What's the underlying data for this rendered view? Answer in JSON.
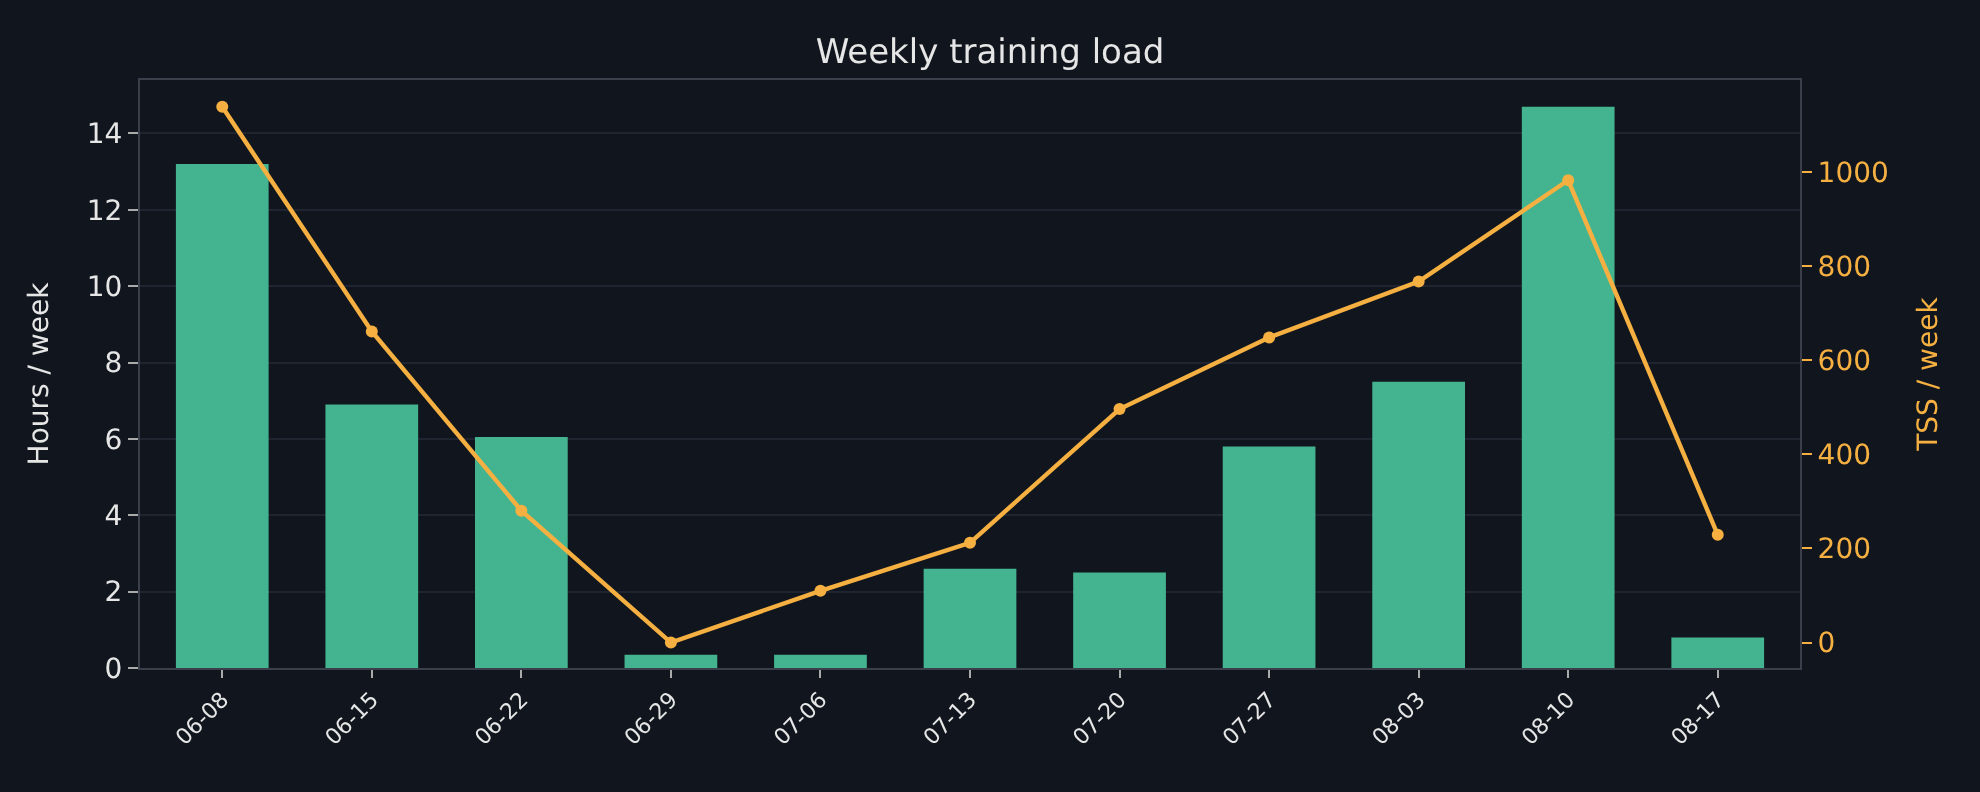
{
  "chart_data": {
    "type": "bar",
    "title": "Weekly training load",
    "ylabel": "Hours / week",
    "y2label": "TSS / week",
    "categories": [
      "06-08",
      "06-15",
      "06-22",
      "06-29",
      "07-06",
      "07-13",
      "07-20",
      "07-27",
      "08-03",
      "08-10",
      "08-17"
    ],
    "series": [
      {
        "color": "#43b48f",
        "values": [
          13.2,
          6.9,
          6.05,
          0.35,
          0.35,
          2.6,
          2.5,
          5.8,
          7.5,
          14.7,
          0.8
        ]
      },
      {
        "type": "line",
        "axis": "y2",
        "color": "#f5b041",
        "values": [
          1138,
          661,
          280,
          0,
          110,
          212,
          496,
          648,
          767,
          982,
          229
        ]
      }
    ],
    "ylim": [
      0,
      15.4
    ],
    "yticks": [
      0,
      2,
      4,
      6,
      8,
      10,
      12,
      14
    ],
    "y2lim": [
      -54,
      1195
    ],
    "y2ticks": [
      0,
      200,
      400,
      600,
      800,
      1000
    ],
    "grid": "y",
    "marker": "circle",
    "line_style": "solid"
  }
}
